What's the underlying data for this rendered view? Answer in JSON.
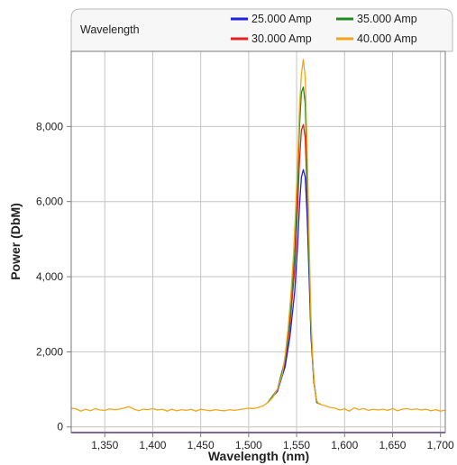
{
  "chart_data": {
    "type": "line",
    "title": "Wavelength",
    "xlabel": "Wavelength (nm)",
    "ylabel": "Power (DbM)",
    "xlim": [
      1315,
      1705
    ],
    "ylim": [
      -150,
      10000
    ],
    "x_ticks": [
      1350,
      1400,
      1450,
      1500,
      1550,
      1600,
      1650,
      1700
    ],
    "x_tick_labels": [
      "1,350",
      "1,400",
      "1,450",
      "1,500",
      "1,550",
      "1,600",
      "1,650",
      "1,700"
    ],
    "y_ticks": [
      0,
      2000,
      4000,
      6000,
      8000
    ],
    "y_tick_labels": [
      "0",
      "2,000",
      "4,000",
      "6,000",
      "8,000"
    ],
    "grid": true,
    "legend_position": "top-right",
    "series": [
      {
        "name": "25.000 Amp",
        "color": "#1f1fe6",
        "points": [
          [
            1315,
            -150
          ],
          [
            1705,
            -150
          ],
          [
            1520,
            650
          ],
          [
            1530,
            950
          ],
          [
            1538,
            1600
          ],
          [
            1543,
            2400
          ],
          [
            1548,
            3600
          ],
          [
            1551,
            4800
          ],
          [
            1553,
            5900
          ],
          [
            1555,
            6650
          ],
          [
            1557,
            6850
          ],
          [
            1559,
            6650
          ],
          [
            1561,
            5600
          ],
          [
            1563,
            4000
          ],
          [
            1565,
            2400
          ],
          [
            1568,
            1200
          ],
          [
            1571,
            650
          ],
          [
            1575,
            600
          ]
        ]
      },
      {
        "name": "30.000 Amp",
        "color": "#e62020",
        "points": [
          [
            1315,
            -150
          ],
          [
            1705,
            -150
          ],
          [
            1520,
            650
          ],
          [
            1530,
            950
          ],
          [
            1538,
            1700
          ],
          [
            1543,
            2700
          ],
          [
            1548,
            4200
          ],
          [
            1551,
            5800
          ],
          [
            1553,
            7100
          ],
          [
            1555,
            7900
          ],
          [
            1557,
            8050
          ],
          [
            1559,
            7700
          ],
          [
            1561,
            6200
          ],
          [
            1563,
            4200
          ],
          [
            1565,
            2500
          ],
          [
            1568,
            1200
          ],
          [
            1571,
            650
          ],
          [
            1575,
            600
          ]
        ]
      },
      {
        "name": "35.000 Amp",
        "color": "#1f8c1f",
        "points": [
          [
            1520,
            650
          ],
          [
            1530,
            1000
          ],
          [
            1538,
            1800
          ],
          [
            1543,
            2900
          ],
          [
            1548,
            4600
          ],
          [
            1551,
            6500
          ],
          [
            1553,
            8000
          ],
          [
            1555,
            8900
          ],
          [
            1557,
            9050
          ],
          [
            1559,
            8600
          ],
          [
            1561,
            6700
          ],
          [
            1563,
            4400
          ],
          [
            1565,
            2600
          ],
          [
            1568,
            1250
          ],
          [
            1571,
            650
          ],
          [
            1575,
            600
          ]
        ]
      },
      {
        "name": "40.000 Amp",
        "color": "#f2a51a",
        "points": [
          [
            1315,
            500
          ],
          [
            1320,
            480
          ],
          [
            1325,
            420
          ],
          [
            1330,
            470
          ],
          [
            1335,
            430
          ],
          [
            1340,
            490
          ],
          [
            1345,
            450
          ],
          [
            1350,
            440
          ],
          [
            1355,
            480
          ],
          [
            1360,
            460
          ],
          [
            1365,
            470
          ],
          [
            1370,
            500
          ],
          [
            1375,
            540
          ],
          [
            1380,
            480
          ],
          [
            1385,
            430
          ],
          [
            1390,
            470
          ],
          [
            1395,
            460
          ],
          [
            1400,
            490
          ],
          [
            1405,
            450
          ],
          [
            1410,
            470
          ],
          [
            1415,
            420
          ],
          [
            1420,
            470
          ],
          [
            1425,
            430
          ],
          [
            1430,
            460
          ],
          [
            1435,
            440
          ],
          [
            1440,
            470
          ],
          [
            1445,
            420
          ],
          [
            1450,
            470
          ],
          [
            1455,
            450
          ],
          [
            1460,
            430
          ],
          [
            1465,
            460
          ],
          [
            1470,
            440
          ],
          [
            1475,
            430
          ],
          [
            1480,
            460
          ],
          [
            1485,
            440
          ],
          [
            1490,
            460
          ],
          [
            1495,
            480
          ],
          [
            1500,
            500
          ],
          [
            1505,
            490
          ],
          [
            1510,
            520
          ],
          [
            1515,
            560
          ],
          [
            1520,
            650
          ],
          [
            1525,
            780
          ],
          [
            1530,
            1000
          ],
          [
            1535,
            1400
          ],
          [
            1538,
            1900
          ],
          [
            1541,
            2600
          ],
          [
            1544,
            3500
          ],
          [
            1547,
            4700
          ],
          [
            1549,
            5800
          ],
          [
            1551,
            7000
          ],
          [
            1553,
            8500
          ],
          [
            1555,
            9400
          ],
          [
            1557,
            9780
          ],
          [
            1559,
            9300
          ],
          [
            1561,
            7400
          ],
          [
            1563,
            5000
          ],
          [
            1565,
            2900
          ],
          [
            1567,
            1700
          ],
          [
            1569,
            1000
          ],
          [
            1571,
            700
          ],
          [
            1573,
            620
          ],
          [
            1575,
            600
          ],
          [
            1580,
            560
          ],
          [
            1585,
            520
          ],
          [
            1590,
            500
          ],
          [
            1595,
            450
          ],
          [
            1600,
            480
          ],
          [
            1605,
            420
          ],
          [
            1610,
            510
          ],
          [
            1615,
            460
          ],
          [
            1620,
            490
          ],
          [
            1625,
            440
          ],
          [
            1630,
            470
          ],
          [
            1635,
            450
          ],
          [
            1640,
            470
          ],
          [
            1645,
            440
          ],
          [
            1650,
            490
          ],
          [
            1655,
            430
          ],
          [
            1660,
            470
          ],
          [
            1665,
            490
          ],
          [
            1670,
            460
          ],
          [
            1675,
            480
          ],
          [
            1680,
            450
          ],
          [
            1685,
            470
          ],
          [
            1690,
            430
          ],
          [
            1695,
            460
          ],
          [
            1700,
            420
          ],
          [
            1705,
            450
          ]
        ]
      }
    ]
  }
}
